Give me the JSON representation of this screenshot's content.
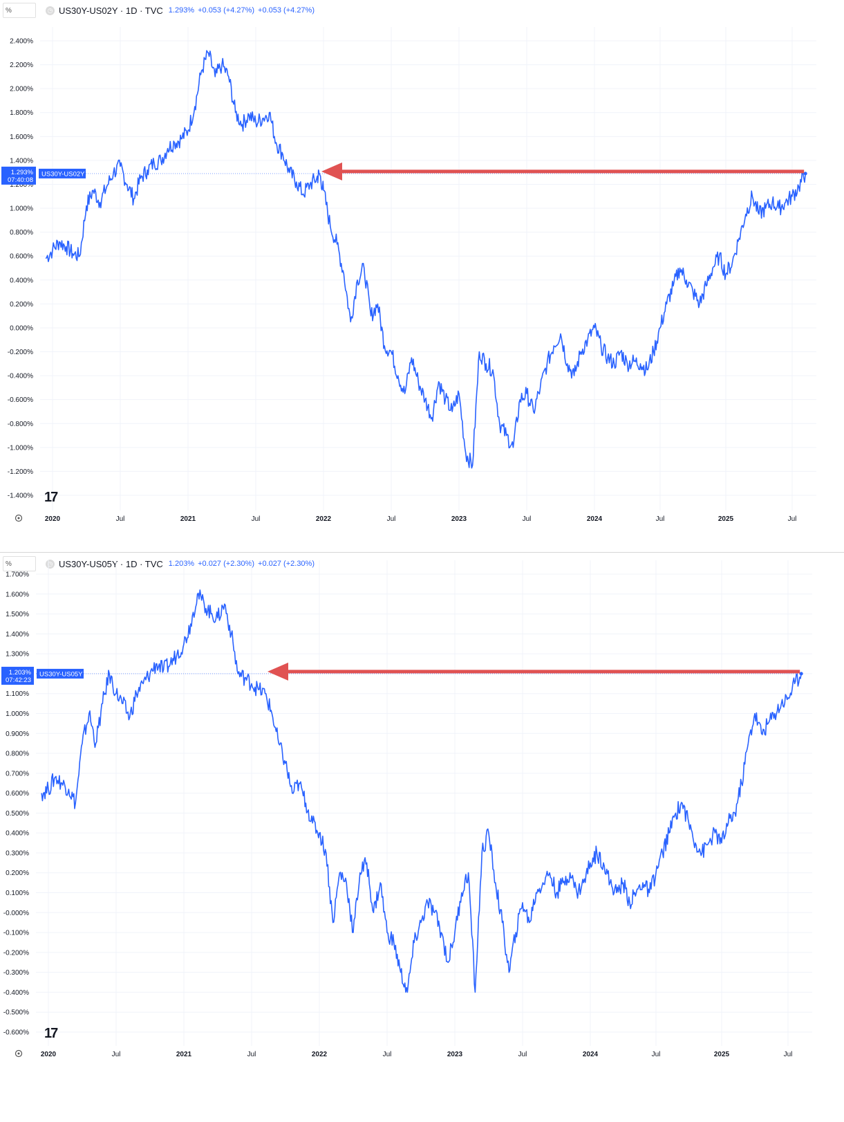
{
  "charts": [
    {
      "unit": "%",
      "legend": {
        "symbol": "US30Y-US02Y · 1D · TVC",
        "last": "1.293%",
        "change": "+0.053 (+4.27%)",
        "change2": "+0.053 (+4.27%)"
      },
      "price_tag": {
        "value": "1.293%",
        "time": "07:40:08",
        "symbol": "US30Y-US02Y"
      },
      "colors": {
        "line": "#2962ff",
        "arrow": "#e05252"
      }
    },
    {
      "unit": "%",
      "legend": {
        "symbol": "US30Y-US05Y · 1D · TVC",
        "last": "1.203%",
        "change": "+0.027 (+2.30%)",
        "change2": "+0.027 (+2.30%)"
      },
      "price_tag": {
        "value": "1.203%",
        "time": "07:42:23",
        "symbol": "US30Y-US05Y"
      },
      "colors": {
        "line": "#2962ff",
        "arrow": "#e05252"
      }
    }
  ],
  "chart_data": [
    {
      "type": "line",
      "title": "US30Y-US02Y · 1D · TVC",
      "y_ticks": [
        "2.400%",
        "2.200%",
        "2.000%",
        "1.800%",
        "1.600%",
        "1.400%",
        "1.200%",
        "1.000%",
        "0.800%",
        "0.600%",
        "0.400%",
        "0.200%",
        "0.000%",
        "-0.200%",
        "-0.400%",
        "-0.600%",
        "-0.800%",
        "-1.000%",
        "-1.200%",
        "-1.400%"
      ],
      "ylim": [
        -1.4,
        2.4
      ],
      "x_ticks": [
        {
          "label": "2020",
          "t": 2020.0,
          "year": true
        },
        {
          "label": "Jul",
          "t": 2020.5
        },
        {
          "label": "2021",
          "t": 2021.0,
          "year": true
        },
        {
          "label": "Jul",
          "t": 2021.5
        },
        {
          "label": "2022",
          "t": 2022.0,
          "year": true
        },
        {
          "label": "Jul",
          "t": 2022.5
        },
        {
          "label": "2023",
          "t": 2023.0,
          "year": true
        },
        {
          "label": "Jul",
          "t": 2023.5
        },
        {
          "label": "2024",
          "t": 2024.0,
          "year": true
        },
        {
          "label": "Jul",
          "t": 2024.5
        },
        {
          "label": "2025",
          "t": 2025.0,
          "year": true
        },
        {
          "label": "Jul",
          "t": 2025.5
        }
      ],
      "series": [
        {
          "x": [
            2019.95,
            2020.0,
            2020.05,
            2020.1,
            2020.15,
            2020.2,
            2020.25,
            2020.3,
            2020.35,
            2020.4,
            2020.45,
            2020.5,
            2020.55,
            2020.6,
            2020.65,
            2020.7,
            2020.75,
            2020.8,
            2020.85,
            2020.9,
            2020.95,
            2021.0,
            2021.05,
            2021.1,
            2021.15,
            2021.2,
            2021.25,
            2021.3,
            2021.35,
            2021.4,
            2021.45,
            2021.5,
            2021.55,
            2021.6,
            2021.65,
            2021.7,
            2021.75,
            2021.8,
            2021.85,
            2021.9,
            2021.95,
            2021.97,
            2022.0,
            2022.05,
            2022.1,
            2022.15,
            2022.2,
            2022.25,
            2022.3,
            2022.35,
            2022.4,
            2022.45,
            2022.5,
            2022.55,
            2022.6,
            2022.65,
            2022.7,
            2022.75,
            2022.8,
            2022.85,
            2022.9,
            2022.95,
            2023.0,
            2023.05,
            2023.1,
            2023.15,
            2023.2,
            2023.25,
            2023.3,
            2023.35,
            2023.4,
            2023.45,
            2023.5,
            2023.55,
            2023.6,
            2023.65,
            2023.7,
            2023.75,
            2023.8,
            2023.85,
            2023.9,
            2023.95,
            2024.0,
            2024.05,
            2024.1,
            2024.15,
            2024.2,
            2024.25,
            2024.3,
            2024.35,
            2024.4,
            2024.45,
            2024.5,
            2024.55,
            2024.6,
            2024.65,
            2024.7,
            2024.75,
            2024.8,
            2024.85,
            2024.9,
            2024.95,
            2025.0,
            2025.05,
            2025.1,
            2025.15,
            2025.2,
            2025.25,
            2025.3,
            2025.35,
            2025.4,
            2025.45,
            2025.5,
            2025.55,
            2025.6
          ],
          "y": [
            0.58,
            0.65,
            0.72,
            0.68,
            0.62,
            0.6,
            1.02,
            1.15,
            1.05,
            1.18,
            1.3,
            1.35,
            1.2,
            1.08,
            1.25,
            1.32,
            1.38,
            1.4,
            1.5,
            1.55,
            1.58,
            1.65,
            1.85,
            2.15,
            2.3,
            2.1,
            2.2,
            2.1,
            1.8,
            1.7,
            1.78,
            1.72,
            1.75,
            1.8,
            1.55,
            1.45,
            1.3,
            1.22,
            1.12,
            1.2,
            1.25,
            1.29,
            1.15,
            0.85,
            0.7,
            0.45,
            0.05,
            0.4,
            0.5,
            0.1,
            0.2,
            -0.15,
            -0.2,
            -0.4,
            -0.55,
            -0.25,
            -0.45,
            -0.6,
            -0.75,
            -0.45,
            -0.6,
            -0.7,
            -0.55,
            -1.05,
            -1.15,
            -0.2,
            -0.3,
            -0.35,
            -0.8,
            -0.9,
            -1.0,
            -0.6,
            -0.55,
            -0.7,
            -0.5,
            -0.3,
            -0.15,
            -0.05,
            -0.3,
            -0.4,
            -0.2,
            -0.1,
            0.0,
            -0.15,
            -0.25,
            -0.3,
            -0.2,
            -0.3,
            -0.28,
            -0.3,
            -0.35,
            -0.2,
            0.0,
            0.2,
            0.35,
            0.5,
            0.4,
            0.3,
            0.2,
            0.35,
            0.5,
            0.6,
            0.45,
            0.55,
            0.75,
            0.95,
            1.1,
            0.95,
            1.0,
            1.05,
            1.0,
            1.05,
            1.1,
            1.18,
            1.29
          ]
        }
      ]
    },
    {
      "type": "line",
      "title": "US30Y-US05Y · 1D · TVC",
      "y_ticks": [
        "1.700%",
        "1.600%",
        "1.500%",
        "1.400%",
        "1.300%",
        "1.200%",
        "1.100%",
        "1.000%",
        "0.900%",
        "0.800%",
        "0.700%",
        "0.600%",
        "0.500%",
        "0.400%",
        "0.300%",
        "0.200%",
        "0.100%",
        "-0.000%",
        "-0.100%",
        "-0.200%",
        "-0.300%",
        "-0.400%",
        "-0.500%",
        "-0.600%"
      ],
      "ylim": [
        -0.6,
        1.7
      ],
      "x_ticks": [
        {
          "label": "2020",
          "t": 2020.0,
          "year": true
        },
        {
          "label": "Jul",
          "t": 2020.5
        },
        {
          "label": "2021",
          "t": 2021.0,
          "year": true
        },
        {
          "label": "Jul",
          "t": 2021.5
        },
        {
          "label": "2022",
          "t": 2022.0,
          "year": true
        },
        {
          "label": "Jul",
          "t": 2022.5
        },
        {
          "label": "2023",
          "t": 2023.0,
          "year": true
        },
        {
          "label": "Jul",
          "t": 2023.5
        },
        {
          "label": "2024",
          "t": 2024.0,
          "year": true
        },
        {
          "label": "Jul",
          "t": 2024.5
        },
        {
          "label": "2025",
          "t": 2025.0,
          "year": true
        },
        {
          "label": "Jul",
          "t": 2025.5
        }
      ],
      "series": [
        {
          "x": [
            2019.95,
            2020.0,
            2020.05,
            2020.1,
            2020.15,
            2020.2,
            2020.25,
            2020.3,
            2020.35,
            2020.4,
            2020.45,
            2020.5,
            2020.55,
            2020.6,
            2020.65,
            2020.7,
            2020.75,
            2020.8,
            2020.85,
            2020.9,
            2020.95,
            2021.0,
            2021.05,
            2021.1,
            2021.15,
            2021.2,
            2021.25,
            2021.3,
            2021.35,
            2021.4,
            2021.45,
            2021.5,
            2021.55,
            2021.6,
            2021.65,
            2021.7,
            2021.75,
            2021.8,
            2021.85,
            2021.9,
            2021.95,
            2022.0,
            2022.05,
            2022.1,
            2022.15,
            2022.2,
            2022.25,
            2022.3,
            2022.35,
            2022.4,
            2022.45,
            2022.5,
            2022.55,
            2022.6,
            2022.65,
            2022.7,
            2022.75,
            2022.8,
            2022.85,
            2022.9,
            2022.95,
            2023.0,
            2023.05,
            2023.1,
            2023.15,
            2023.2,
            2023.25,
            2023.3,
            2023.35,
            2023.4,
            2023.45,
            2023.5,
            2023.55,
            2023.6,
            2023.65,
            2023.7,
            2023.75,
            2023.8,
            2023.85,
            2023.9,
            2023.95,
            2024.0,
            2024.05,
            2024.1,
            2024.15,
            2024.2,
            2024.25,
            2024.3,
            2024.35,
            2024.4,
            2024.45,
            2024.5,
            2024.55,
            2024.6,
            2024.65,
            2024.7,
            2024.75,
            2024.8,
            2024.85,
            2024.9,
            2024.95,
            2025.0,
            2025.05,
            2025.1,
            2025.15,
            2025.2,
            2025.25,
            2025.3,
            2025.35,
            2025.4,
            2025.45,
            2025.5,
            2025.55,
            2025.6
          ],
          "y": [
            0.6,
            0.62,
            0.68,
            0.65,
            0.62,
            0.55,
            0.85,
            1.0,
            0.85,
            1.05,
            1.2,
            1.1,
            1.05,
            0.98,
            1.1,
            1.15,
            1.2,
            1.25,
            1.22,
            1.25,
            1.3,
            1.35,
            1.45,
            1.6,
            1.55,
            1.5,
            1.48,
            1.55,
            1.4,
            1.2,
            1.18,
            1.15,
            1.12,
            1.1,
            1.0,
            0.85,
            0.75,
            0.6,
            0.65,
            0.55,
            0.45,
            0.4,
            0.3,
            -0.05,
            0.2,
            0.15,
            -0.1,
            0.2,
            0.25,
            0.0,
            0.15,
            -0.1,
            -0.15,
            -0.3,
            -0.4,
            -0.15,
            -0.05,
            0.05,
            0.0,
            -0.1,
            -0.25,
            -0.1,
            0.1,
            0.2,
            -0.4,
            0.3,
            0.4,
            0.15,
            -0.05,
            -0.3,
            -0.1,
            0.05,
            -0.05,
            0.1,
            0.15,
            0.2,
            0.1,
            0.15,
            0.2,
            0.1,
            0.15,
            0.25,
            0.3,
            0.25,
            0.15,
            0.1,
            0.15,
            0.05,
            0.1,
            0.15,
            0.1,
            0.2,
            0.3,
            0.4,
            0.5,
            0.55,
            0.45,
            0.35,
            0.3,
            0.35,
            0.4,
            0.35,
            0.45,
            0.5,
            0.65,
            0.85,
            1.0,
            0.9,
            0.95,
            1.0,
            1.05,
            1.08,
            1.15,
            1.2
          ]
        }
      ]
    }
  ]
}
